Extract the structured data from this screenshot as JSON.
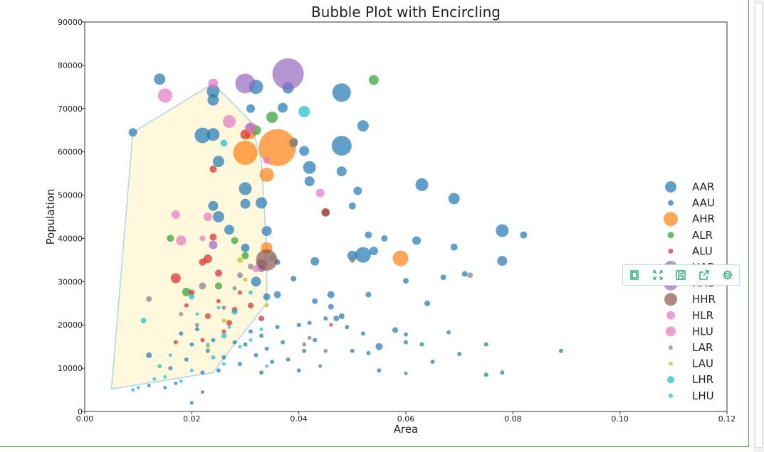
{
  "chart_data": {
    "type": "scatter",
    "title": "Bubble Plot with Encircling",
    "xlabel": "Area",
    "ylabel": "Population",
    "xlim": [
      0.0,
      0.12
    ],
    "ylim": [
      0,
      90000
    ],
    "xticks": [
      "0.00",
      "0.02",
      "0.04",
      "0.06",
      "0.08",
      "0.10",
      "0.12"
    ],
    "yticks": [
      "0",
      "10000",
      "20000",
      "30000",
      "40000",
      "50000",
      "60000",
      "70000",
      "80000",
      "90000"
    ],
    "grid": false,
    "legend_placement": "right",
    "series": [
      {
        "name": "AAR",
        "color": "#1f77b4",
        "legend_size": 16,
        "points": [
          [
            0.009,
            64500,
            12
          ],
          [
            0.014,
            76800,
            16
          ],
          [
            0.022,
            63800,
            22
          ],
          [
            0.024,
            74000,
            18
          ],
          [
            0.024,
            72000,
            16
          ],
          [
            0.024,
            64000,
            18
          ],
          [
            0.025,
            57800,
            16
          ],
          [
            0.024,
            47500,
            14
          ],
          [
            0.025,
            45000,
            16
          ],
          [
            0.027,
            42000,
            14
          ],
          [
            0.03,
            51500,
            18
          ],
          [
            0.03,
            48000,
            14
          ],
          [
            0.031,
            70000,
            12
          ],
          [
            0.032,
            75000,
            20
          ],
          [
            0.031,
            65500,
            14
          ],
          [
            0.033,
            48200,
            16
          ],
          [
            0.034,
            41700,
            14
          ],
          [
            0.03,
            37800,
            12
          ],
          [
            0.032,
            30000,
            14
          ],
          [
            0.037,
            70200,
            14
          ],
          [
            0.038,
            74800,
            16
          ],
          [
            0.039,
            62300,
            12
          ],
          [
            0.041,
            60200,
            14
          ],
          [
            0.042,
            56400,
            18
          ],
          [
            0.042,
            53200,
            14
          ],
          [
            0.048,
            73700,
            26
          ],
          [
            0.048,
            61400,
            28
          ],
          [
            0.048,
            55500,
            14
          ],
          [
            0.052,
            66000,
            16
          ],
          [
            0.051,
            51000,
            12
          ],
          [
            0.05,
            47500,
            10
          ],
          [
            0.053,
            40800,
            10
          ],
          [
            0.052,
            36200,
            22
          ],
          [
            0.05,
            36000,
            14
          ],
          [
            0.054,
            37100,
            12
          ],
          [
            0.063,
            52400,
            18
          ],
          [
            0.069,
            49200,
            16
          ],
          [
            0.062,
            39500,
            12
          ],
          [
            0.069,
            38000,
            10
          ],
          [
            0.078,
            41800,
            18
          ],
          [
            0.078,
            34800,
            14
          ],
          [
            0.082,
            40800,
            10
          ],
          [
            0.046,
            27000,
            10
          ],
          [
            0.055,
            15000,
            10
          ],
          [
            0.043,
            34700,
            12
          ],
          [
            0.036,
            27000,
            10
          ],
          [
            0.034,
            26500,
            10
          ],
          [
            0.056,
            40000,
            9
          ]
        ]
      },
      {
        "name": "AAU",
        "color": "#1f77b4",
        "legend_size": 8,
        "points": [
          [
            0.012,
            13000,
            8
          ],
          [
            0.018,
            18000,
            6
          ],
          [
            0.02,
            15500,
            6
          ],
          [
            0.021,
            19000,
            6
          ],
          [
            0.022,
            9000,
            6
          ],
          [
            0.023,
            14000,
            6
          ],
          [
            0.024,
            16500,
            6
          ],
          [
            0.025,
            9500,
            6
          ],
          [
            0.026,
            12500,
            6
          ],
          [
            0.028,
            16000,
            6
          ],
          [
            0.029,
            11000,
            6
          ],
          [
            0.03,
            15500,
            6
          ],
          [
            0.031,
            18500,
            6
          ],
          [
            0.032,
            13000,
            6
          ],
          [
            0.033,
            17500,
            6
          ],
          [
            0.033,
            9000,
            6
          ],
          [
            0.034,
            14500,
            6
          ],
          [
            0.035,
            11500,
            6
          ],
          [
            0.036,
            19500,
            6
          ],
          [
            0.037,
            16000,
            6
          ],
          [
            0.038,
            12000,
            6
          ],
          [
            0.04,
            9500,
            6
          ],
          [
            0.041,
            14000,
            6
          ],
          [
            0.042,
            20500,
            6
          ],
          [
            0.043,
            16500,
            6
          ],
          [
            0.045,
            21500,
            6
          ],
          [
            0.047,
            21500,
            8
          ],
          [
            0.049,
            19500,
            6
          ],
          [
            0.05,
            14000,
            6
          ],
          [
            0.052,
            18000,
            6
          ],
          [
            0.053,
            13500,
            6
          ],
          [
            0.055,
            9500,
            6
          ],
          [
            0.058,
            18800,
            8
          ],
          [
            0.06,
            17800,
            6
          ],
          [
            0.06,
            16000,
            6
          ],
          [
            0.063,
            15500,
            6
          ],
          [
            0.065,
            11500,
            6
          ],
          [
            0.068,
            18300,
            6
          ],
          [
            0.07,
            13300,
            6
          ],
          [
            0.075,
            15500,
            6
          ],
          [
            0.078,
            9000,
            6
          ],
          [
            0.089,
            14000,
            6
          ],
          [
            0.075,
            8500,
            6
          ],
          [
            0.06,
            30200,
            8
          ],
          [
            0.064,
            25000,
            8
          ],
          [
            0.067,
            31000,
            8
          ],
          [
            0.071,
            31800,
            8
          ],
          [
            0.043,
            25500,
            8
          ],
          [
            0.039,
            30700,
            8
          ],
          [
            0.036,
            34500,
            8
          ],
          [
            0.046,
            24200,
            8
          ],
          [
            0.048,
            22000,
            8
          ],
          [
            0.053,
            27000,
            8
          ],
          [
            0.04,
            20000,
            6
          ],
          [
            0.06,
            8800,
            5
          ],
          [
            0.044,
            10500,
            5
          ],
          [
            0.019,
            12000,
            6
          ],
          [
            0.016,
            10000,
            6
          ],
          [
            0.017,
            6500,
            5
          ],
          [
            0.015,
            5500,
            5
          ],
          [
            0.02,
            2000,
            5
          ],
          [
            0.022,
            4500,
            5
          ],
          [
            0.012,
            6000,
            5
          ]
        ]
      },
      {
        "name": "AHR",
        "color": "#ff7f0e",
        "legend_size": 20,
        "points": [
          [
            0.03,
            59800,
            34
          ],
          [
            0.036,
            61000,
            52
          ],
          [
            0.034,
            54700,
            20
          ],
          [
            0.034,
            37800,
            16
          ],
          [
            0.059,
            35400,
            22
          ],
          [
            0.031,
            64300,
            16
          ]
        ]
      },
      {
        "name": "ALR",
        "color": "#2ca02c",
        "legend_size": 9,
        "points": [
          [
            0.054,
            76600,
            14
          ],
          [
            0.035,
            68000,
            16
          ],
          [
            0.032,
            65000,
            14
          ],
          [
            0.016,
            40000,
            10
          ],
          [
            0.019,
            27600,
            12
          ],
          [
            0.025,
            29000,
            10
          ],
          [
            0.03,
            36000,
            10
          ],
          [
            0.028,
            39500,
            10
          ]
        ]
      },
      {
        "name": "ALU",
        "color": "#d62728",
        "legend_size": 7,
        "points": [
          [
            0.024,
            56000,
            10
          ],
          [
            0.03,
            64000,
            14
          ],
          [
            0.017,
            30800,
            14
          ],
          [
            0.023,
            35300,
            12
          ],
          [
            0.024,
            40300,
            10
          ],
          [
            0.022,
            34500,
            10
          ],
          [
            0.025,
            32000,
            10
          ],
          [
            0.02,
            27500,
            8
          ],
          [
            0.045,
            46000,
            12
          ],
          [
            0.023,
            22000,
            8
          ],
          [
            0.017,
            16000,
            6
          ],
          [
            0.028,
            23500,
            8
          ],
          [
            0.027,
            20500,
            8
          ],
          [
            0.033,
            21500,
            8
          ],
          [
            0.031,
            24500,
            8
          ],
          [
            0.026,
            18500,
            6
          ],
          [
            0.022,
            16500,
            6
          ],
          [
            0.019,
            24500,
            6
          ],
          [
            0.025,
            25500,
            6
          ],
          [
            0.029,
            27500,
            6
          ],
          [
            0.046,
            20000,
            5
          ]
        ]
      },
      {
        "name": "HAR",
        "color": "#9467bd",
        "legend_size": 18,
        "points": [
          [
            0.03,
            75800,
            28
          ],
          [
            0.038,
            78000,
            44
          ],
          [
            0.033,
            34000,
            14
          ]
        ]
      },
      {
        "name": "HAU",
        "color": "#9467bd",
        "legend_size": 20,
        "points": [
          [
            0.024,
            38500,
            12
          ],
          [
            0.033,
            33000,
            10
          ]
        ]
      },
      {
        "name": "HHR",
        "color": "#8c564b",
        "legend_size": 18,
        "points": [
          [
            0.034,
            35000,
            30
          ],
          [
            0.045,
            46000,
            10
          ]
        ]
      },
      {
        "name": "HLR",
        "color": "#e377c2",
        "legend_size": 12,
        "points": [
          [
            0.015,
            73000,
            20
          ],
          [
            0.024,
            75800,
            14
          ],
          [
            0.027,
            67000,
            18
          ],
          [
            0.031,
            65500,
            16
          ],
          [
            0.017,
            45500,
            12
          ],
          [
            0.018,
            39500,
            14
          ],
          [
            0.023,
            45000,
            12
          ],
          [
            0.044,
            50500,
            12
          ],
          [
            0.034,
            58000,
            10
          ]
        ]
      },
      {
        "name": "HLU",
        "color": "#e377c2",
        "legend_size": 14,
        "points": [
          [
            0.032,
            33000,
            10
          ],
          [
            0.022,
            40000,
            8
          ]
        ]
      },
      {
        "name": "LAR",
        "color": "#7f7f7f",
        "legend_size": 6,
        "points": [
          [
            0.012,
            26000,
            8
          ],
          [
            0.018,
            22500,
            6
          ],
          [
            0.021,
            20000,
            6
          ],
          [
            0.026,
            24000,
            6
          ],
          [
            0.029,
            31500,
            8
          ],
          [
            0.031,
            33500,
            8
          ],
          [
            0.035,
            35500,
            8
          ],
          [
            0.039,
            62000,
            12
          ],
          [
            0.042,
            17000,
            6
          ],
          [
            0.045,
            14000,
            6
          ],
          [
            0.05,
            35000,
            8
          ],
          [
            0.072,
            31500,
            8
          ],
          [
            0.022,
            29000,
            10
          ],
          [
            0.041,
            15500,
            6
          ],
          [
            0.028,
            28500,
            6
          ]
        ]
      },
      {
        "name": "LAU",
        "color": "#bcbd22",
        "legend_size": 6,
        "points": [
          [
            0.029,
            35000,
            8
          ],
          [
            0.023,
            15000,
            6
          ],
          [
            0.026,
            21000,
            6
          ],
          [
            0.03,
            30500,
            6
          ],
          [
            0.034,
            24500,
            6
          ]
        ]
      },
      {
        "name": "LHR",
        "color": "#17becf",
        "legend_size": 10,
        "points": [
          [
            0.041,
            69300,
            16
          ],
          [
            0.026,
            62000,
            10
          ],
          [
            0.011,
            21000,
            8
          ],
          [
            0.014,
            10500,
            6
          ],
          [
            0.02,
            26500,
            8
          ],
          [
            0.028,
            23000,
            8
          ],
          [
            0.031,
            27500,
            6
          ],
          [
            0.026,
            17500,
            8
          ],
          [
            0.024,
            12500,
            6
          ]
        ]
      },
      {
        "name": "LHU",
        "color": "#17becf",
        "legend_size": 6,
        "points": [
          [
            0.01,
            5500,
            5
          ],
          [
            0.015,
            8000,
            5
          ],
          [
            0.018,
            7000,
            5
          ],
          [
            0.02,
            9500,
            5
          ],
          [
            0.023,
            15500,
            5
          ],
          [
            0.026,
            11000,
            5
          ],
          [
            0.029,
            15000,
            5
          ],
          [
            0.033,
            19000,
            5
          ],
          [
            0.027,
            19500,
            5
          ],
          [
            0.034,
            10500,
            5
          ],
          [
            0.025,
            24000,
            5
          ],
          [
            0.021,
            22500,
            5
          ],
          [
            0.031,
            16500,
            5
          ],
          [
            0.009,
            5000,
            5
          ],
          [
            0.016,
            13000,
            5
          ],
          [
            0.013,
            7500,
            5
          ]
        ]
      }
    ],
    "encircle": {
      "fill": "#fff8dc",
      "edge": "#add8e6",
      "points": [
        [
          0.005,
          5200
        ],
        [
          0.009,
          64500
        ],
        [
          0.024,
          75800
        ],
        [
          0.031,
          67000
        ],
        [
          0.033,
          58000
        ],
        [
          0.034,
          37000
        ],
        [
          0.034,
          25000
        ],
        [
          0.027,
          14000
        ],
        [
          0.024,
          9000
        ],
        [
          0.005,
          5200
        ]
      ]
    }
  }
}
